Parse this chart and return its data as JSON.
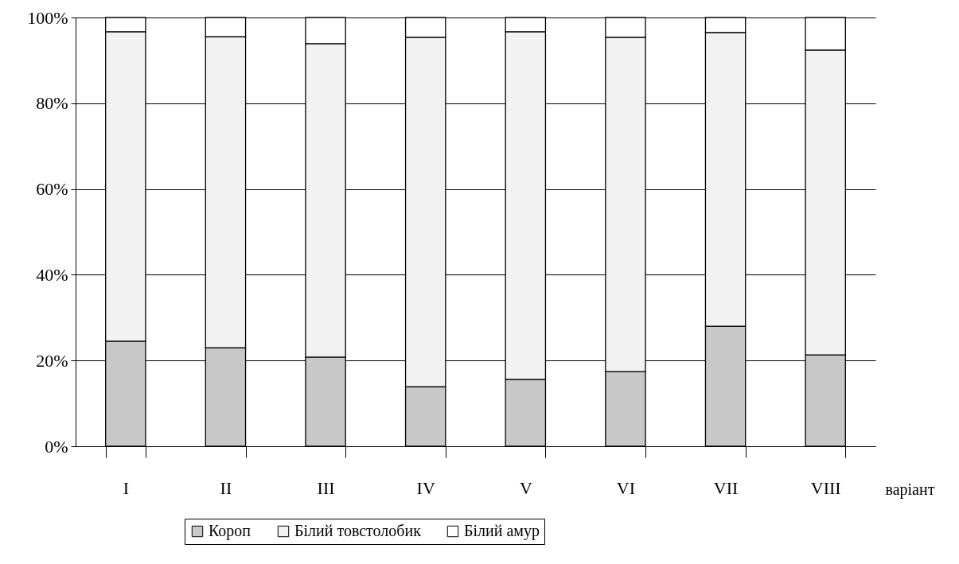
{
  "chart_data": {
    "type": "bar",
    "stacked": true,
    "xlabel": "варіант",
    "categories": [
      "I",
      "II",
      "III",
      "IV",
      "V",
      "VI",
      "VII",
      "VIII"
    ],
    "series": [
      {
        "name": "Короп",
        "color": "#c8c8c8",
        "values": [
          24.5,
          23,
          20.8,
          13.9,
          15.6,
          17.4,
          28,
          21.3
        ]
      },
      {
        "name": "Білий товстолобик",
        "color": "#f2f2f2",
        "values": [
          72.2,
          72.5,
          73.1,
          81.5,
          81.1,
          78,
          68.5,
          71.1
        ]
      },
      {
        "name": "Білий амур",
        "color": "#ffffff",
        "values": [
          3.3,
          4.5,
          6.1,
          4.6,
          3.3,
          4.6,
          3.5,
          7.6
        ]
      }
    ],
    "ylim": [
      0,
      100
    ],
    "yticks": [
      {
        "value": 0,
        "label": "0%"
      },
      {
        "value": 20,
        "label": "20%"
      },
      {
        "value": 40,
        "label": "40%"
      },
      {
        "value": 60,
        "label": "60%"
      },
      {
        "value": 80,
        "label": "80%"
      },
      {
        "value": 100,
        "label": "100%"
      }
    ],
    "grid": "y",
    "legend": "bottom"
  }
}
